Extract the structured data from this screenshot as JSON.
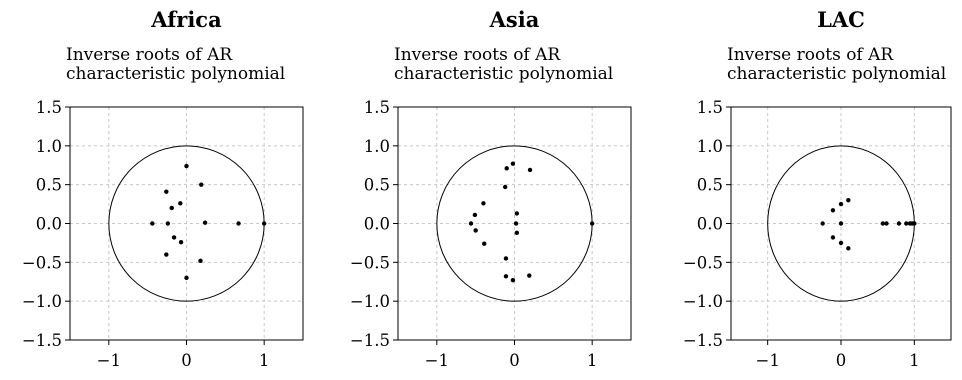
{
  "chart_data": [
    {
      "type": "scatter",
      "title": "Africa",
      "subtitle": [
        "Inverse roots of AR",
        "characteristic polynomial"
      ],
      "xlim": [
        -1.5,
        1.5
      ],
      "ylim": [
        -1.5,
        1.5
      ],
      "xticks": [
        -1,
        0,
        1
      ],
      "yticks": [
        1.5,
        1.0,
        0.5,
        0.0,
        -0.5,
        -1.0,
        -1.5
      ],
      "unit_circle": true,
      "grid": true,
      "points": [
        [
          1.0,
          0.0
        ],
        [
          0.67,
          0.0
        ],
        [
          0.24,
          0.01
        ],
        [
          0.19,
          0.5
        ],
        [
          0.18,
          -0.48
        ],
        [
          0.0,
          0.74
        ],
        [
          0.0,
          -0.7
        ],
        [
          -0.08,
          0.26
        ],
        [
          -0.07,
          -0.24
        ],
        [
          -0.19,
          0.2
        ],
        [
          -0.16,
          -0.18
        ],
        [
          -0.26,
          0.41
        ],
        [
          -0.26,
          -0.4
        ],
        [
          -0.24,
          0.0
        ],
        [
          -0.44,
          0.0
        ]
      ]
    },
    {
      "type": "scatter",
      "title": "Asia",
      "subtitle": [
        "Inverse roots of AR",
        "characteristic polynomial"
      ],
      "xlim": [
        -1.5,
        1.5
      ],
      "ylim": [
        -1.5,
        1.5
      ],
      "xticks": [
        -1,
        0,
        1
      ],
      "yticks": [
        1.5,
        1.0,
        0.5,
        0.0,
        -0.5,
        -1.0,
        -1.5
      ],
      "unit_circle": true,
      "grid": true,
      "points": [
        [
          1.0,
          0.0
        ],
        [
          0.2,
          0.69
        ],
        [
          0.19,
          -0.67
        ],
        [
          0.03,
          0.13
        ],
        [
          0.03,
          -0.12
        ],
        [
          0.02,
          0.0
        ],
        [
          -0.02,
          0.77
        ],
        [
          -0.02,
          -0.73
        ],
        [
          -0.1,
          0.71
        ],
        [
          -0.11,
          -0.68
        ],
        [
          -0.12,
          0.47
        ],
        [
          -0.11,
          -0.45
        ],
        [
          -0.4,
          0.26
        ],
        [
          -0.39,
          -0.26
        ],
        [
          -0.51,
          0.11
        ],
        [
          -0.5,
          -0.09
        ],
        [
          -0.56,
          0.0
        ]
      ]
    },
    {
      "type": "scatter",
      "title": "LAC",
      "subtitle": [
        "Inverse roots of AR",
        "characteristic polynomial"
      ],
      "xlim": [
        -1.5,
        1.5
      ],
      "ylim": [
        -1.5,
        1.5
      ],
      "xticks": [
        -1,
        0,
        1
      ],
      "yticks": [
        1.5,
        1.0,
        0.5,
        0.0,
        -0.5,
        -1.0,
        -1.5
      ],
      "unit_circle": true,
      "grid": true,
      "points": [
        [
          1.0,
          0.0
        ],
        [
          0.97,
          0.0
        ],
        [
          0.94,
          0.0
        ],
        [
          0.89,
          0.0
        ],
        [
          0.79,
          0.0
        ],
        [
          0.62,
          0.0
        ],
        [
          0.57,
          0.0
        ],
        [
          0.1,
          0.3
        ],
        [
          0.1,
          -0.32
        ],
        [
          0.0,
          0.25
        ],
        [
          0.0,
          -0.25
        ],
        [
          0.0,
          0.0
        ],
        [
          -0.11,
          0.17
        ],
        [
          -0.11,
          -0.18
        ],
        [
          -0.25,
          0.0
        ]
      ]
    }
  ]
}
